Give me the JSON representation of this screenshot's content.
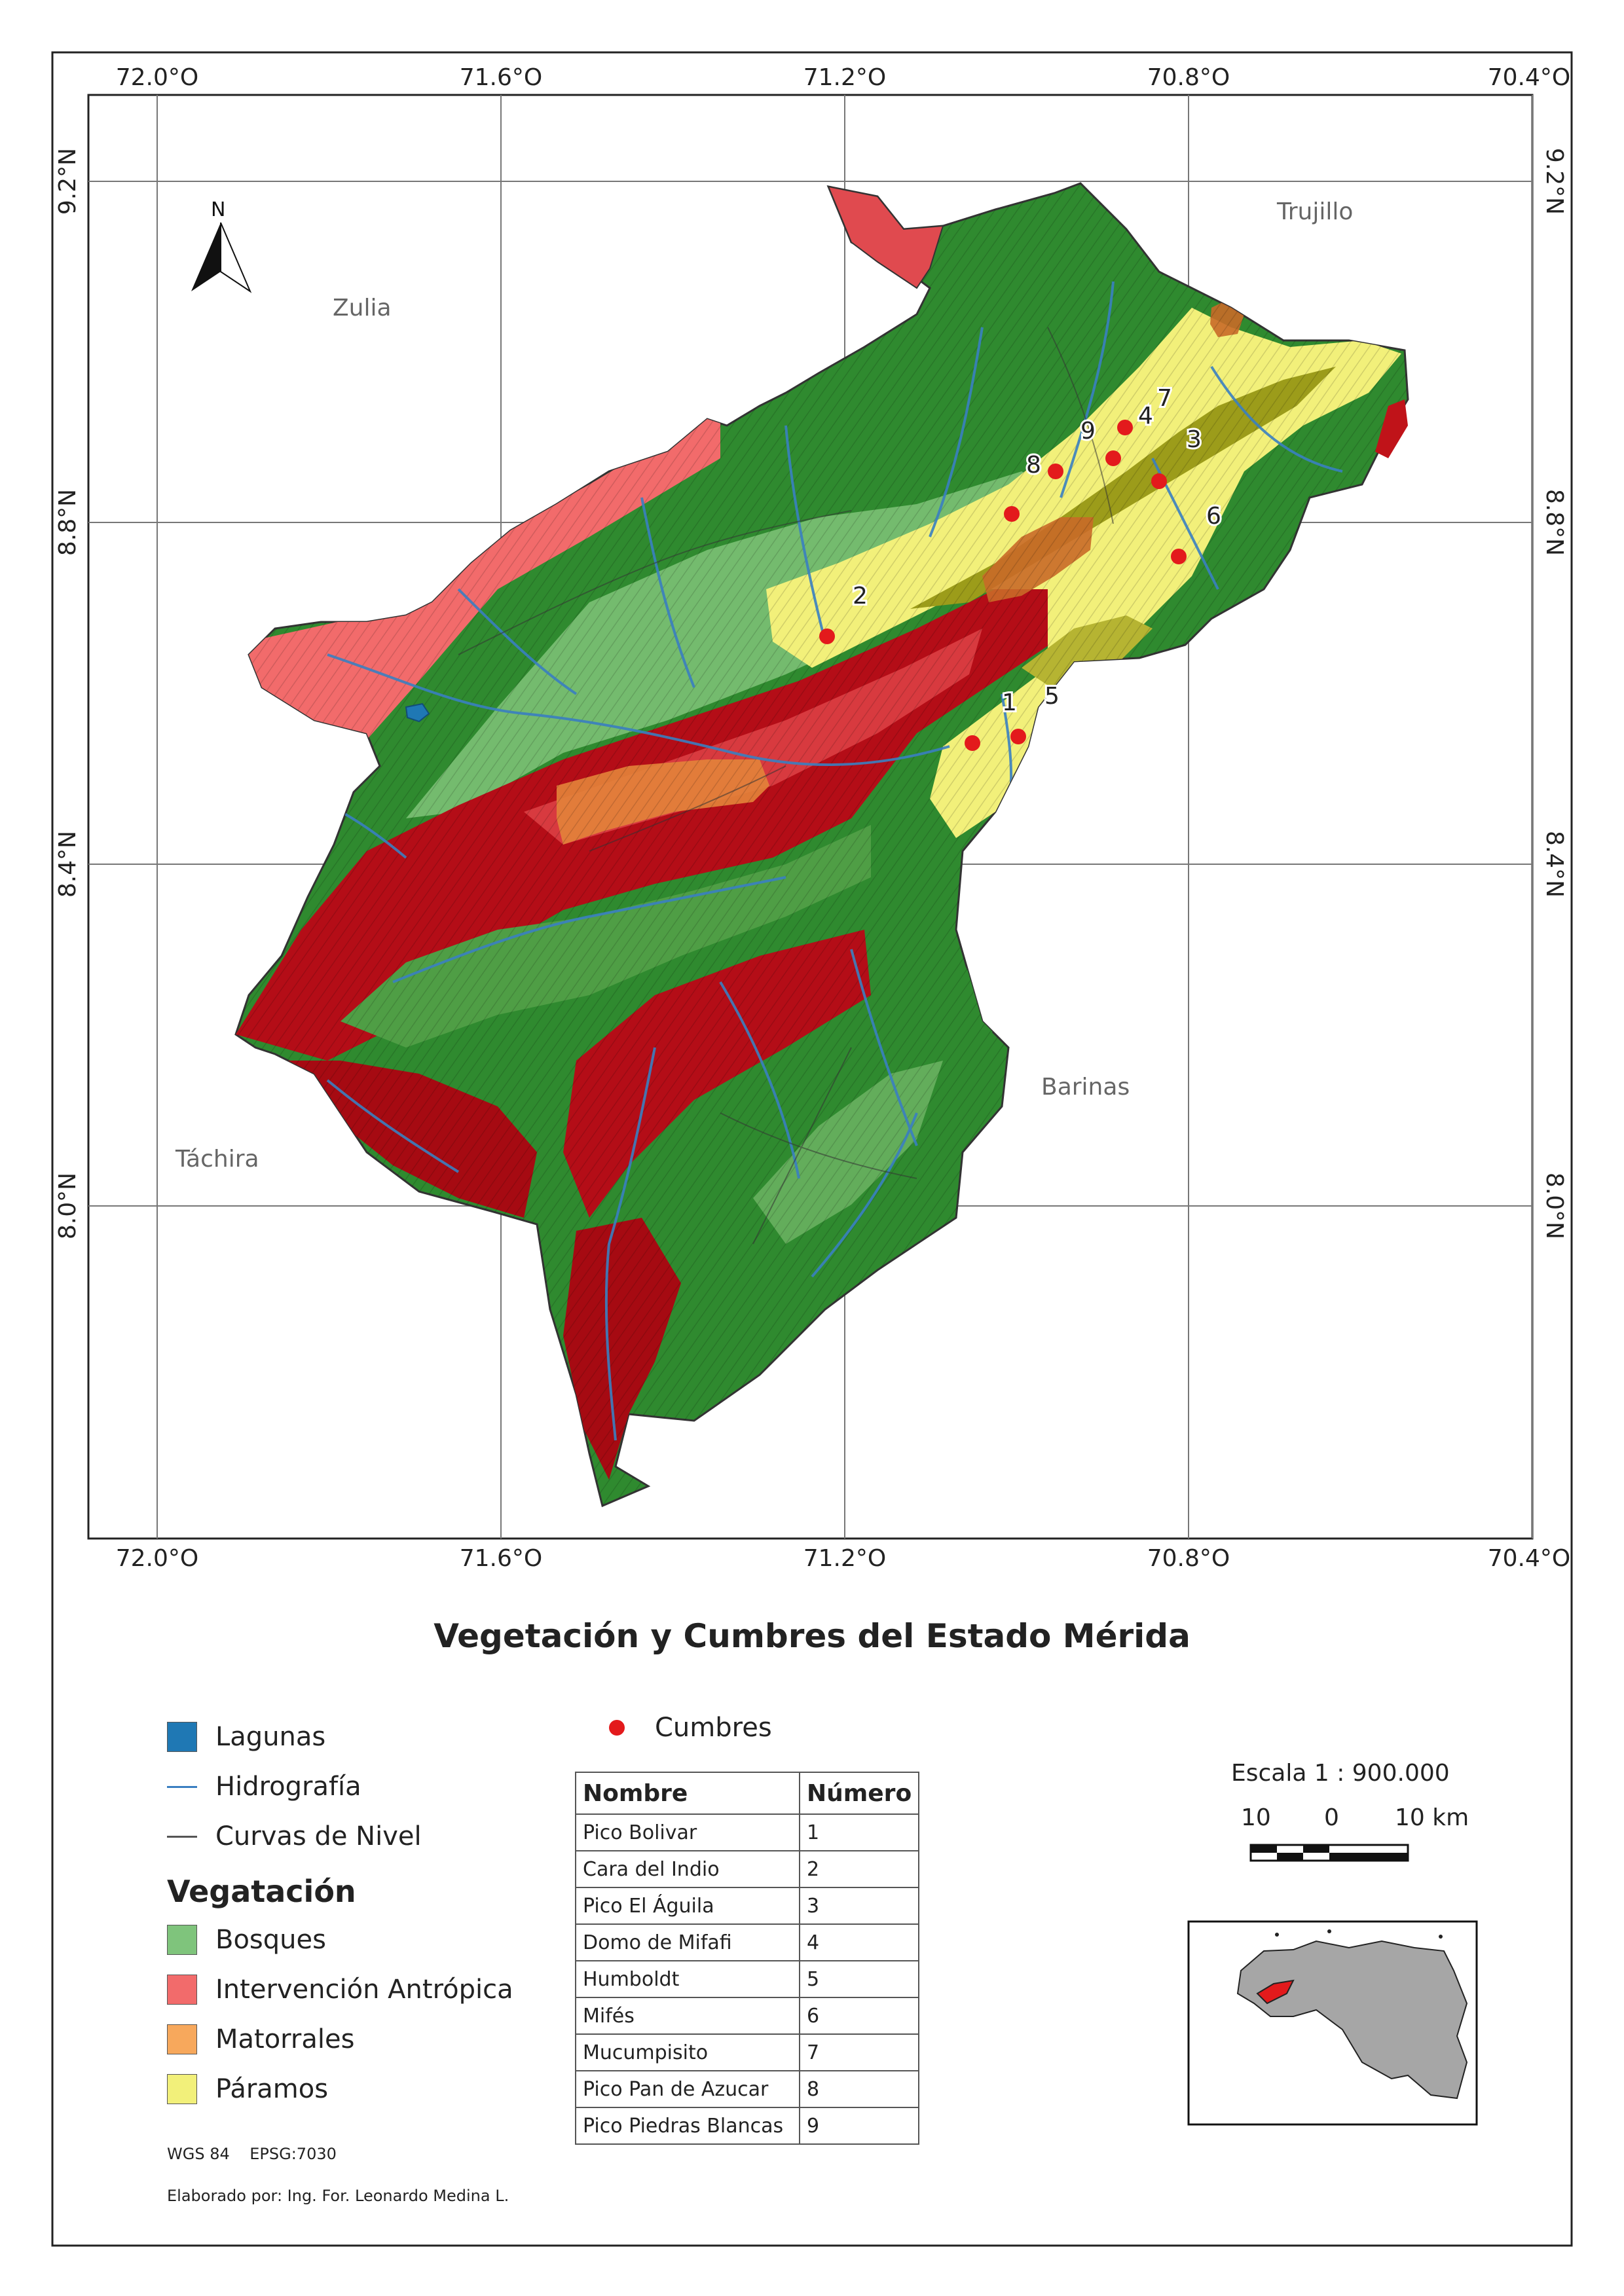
{
  "map": {
    "title": "Vegetación y Cumbres del Estado Mérida",
    "lon_labels": [
      "72.0°O",
      "71.6°O",
      "71.2°O",
      "70.8°O",
      "70.4°O"
    ],
    "lat_labels": [
      "9.2°N",
      "8.8°N",
      "8.4°N",
      "8.0°N"
    ],
    "north_label": "N",
    "neighbors": {
      "zulia": "Zulia",
      "trujillo": "Trujillo",
      "barinas": "Barinas",
      "tachira": "Táchira"
    },
    "peak_labels": [
      "1",
      "2",
      "3",
      "4",
      "5",
      "6",
      "7",
      "8",
      "9"
    ]
  },
  "legend": {
    "lagunas": "Lagunas",
    "hidrografia": "Hidrografía",
    "curvas": "Curvas de Nivel",
    "vegetacion_heading": "Vegatación",
    "bosques": "Bosques",
    "intervencion": "Intervención Antrópica",
    "matorrales": "Matorrales",
    "paramos": "Páramos",
    "cumbres": "Cumbres",
    "colors": {
      "lagunas": "#1f78b4",
      "hidrografia": "#3a7fc1",
      "curvas": "#555555",
      "bosques": "#7fc47c",
      "intervencion": "#f26b6b",
      "matorrales": "#f7a85c",
      "paramos": "#f2f07a",
      "cumbres": "#e31a1c"
    }
  },
  "table": {
    "headers": [
      "Nombre",
      "Número"
    ],
    "rows": [
      {
        "name": "Pico Bolivar",
        "num": "1"
      },
      {
        "name": "Cara del Indio",
        "num": "2"
      },
      {
        "name": "Pico El Águila",
        "num": "3"
      },
      {
        "name": "Domo de Mifafi",
        "num": "4"
      },
      {
        "name": "Humboldt",
        "num": "5"
      },
      {
        "name": "Mifés",
        "num": "6"
      },
      {
        "name": "Mucumpisito",
        "num": "7"
      },
      {
        "name": "Pico Pan de Azucar",
        "num": "8"
      },
      {
        "name": "Pico Piedras Blancas",
        "num": "9"
      }
    ]
  },
  "scale": {
    "label": "Escala 1 : 900.000",
    "ticks": [
      "10",
      "0",
      "10 km"
    ]
  },
  "footer": {
    "crs": "WGS 84    EPSG:7030",
    "author": "Elaborado por: Ing. For. Leonardo Medina L."
  }
}
